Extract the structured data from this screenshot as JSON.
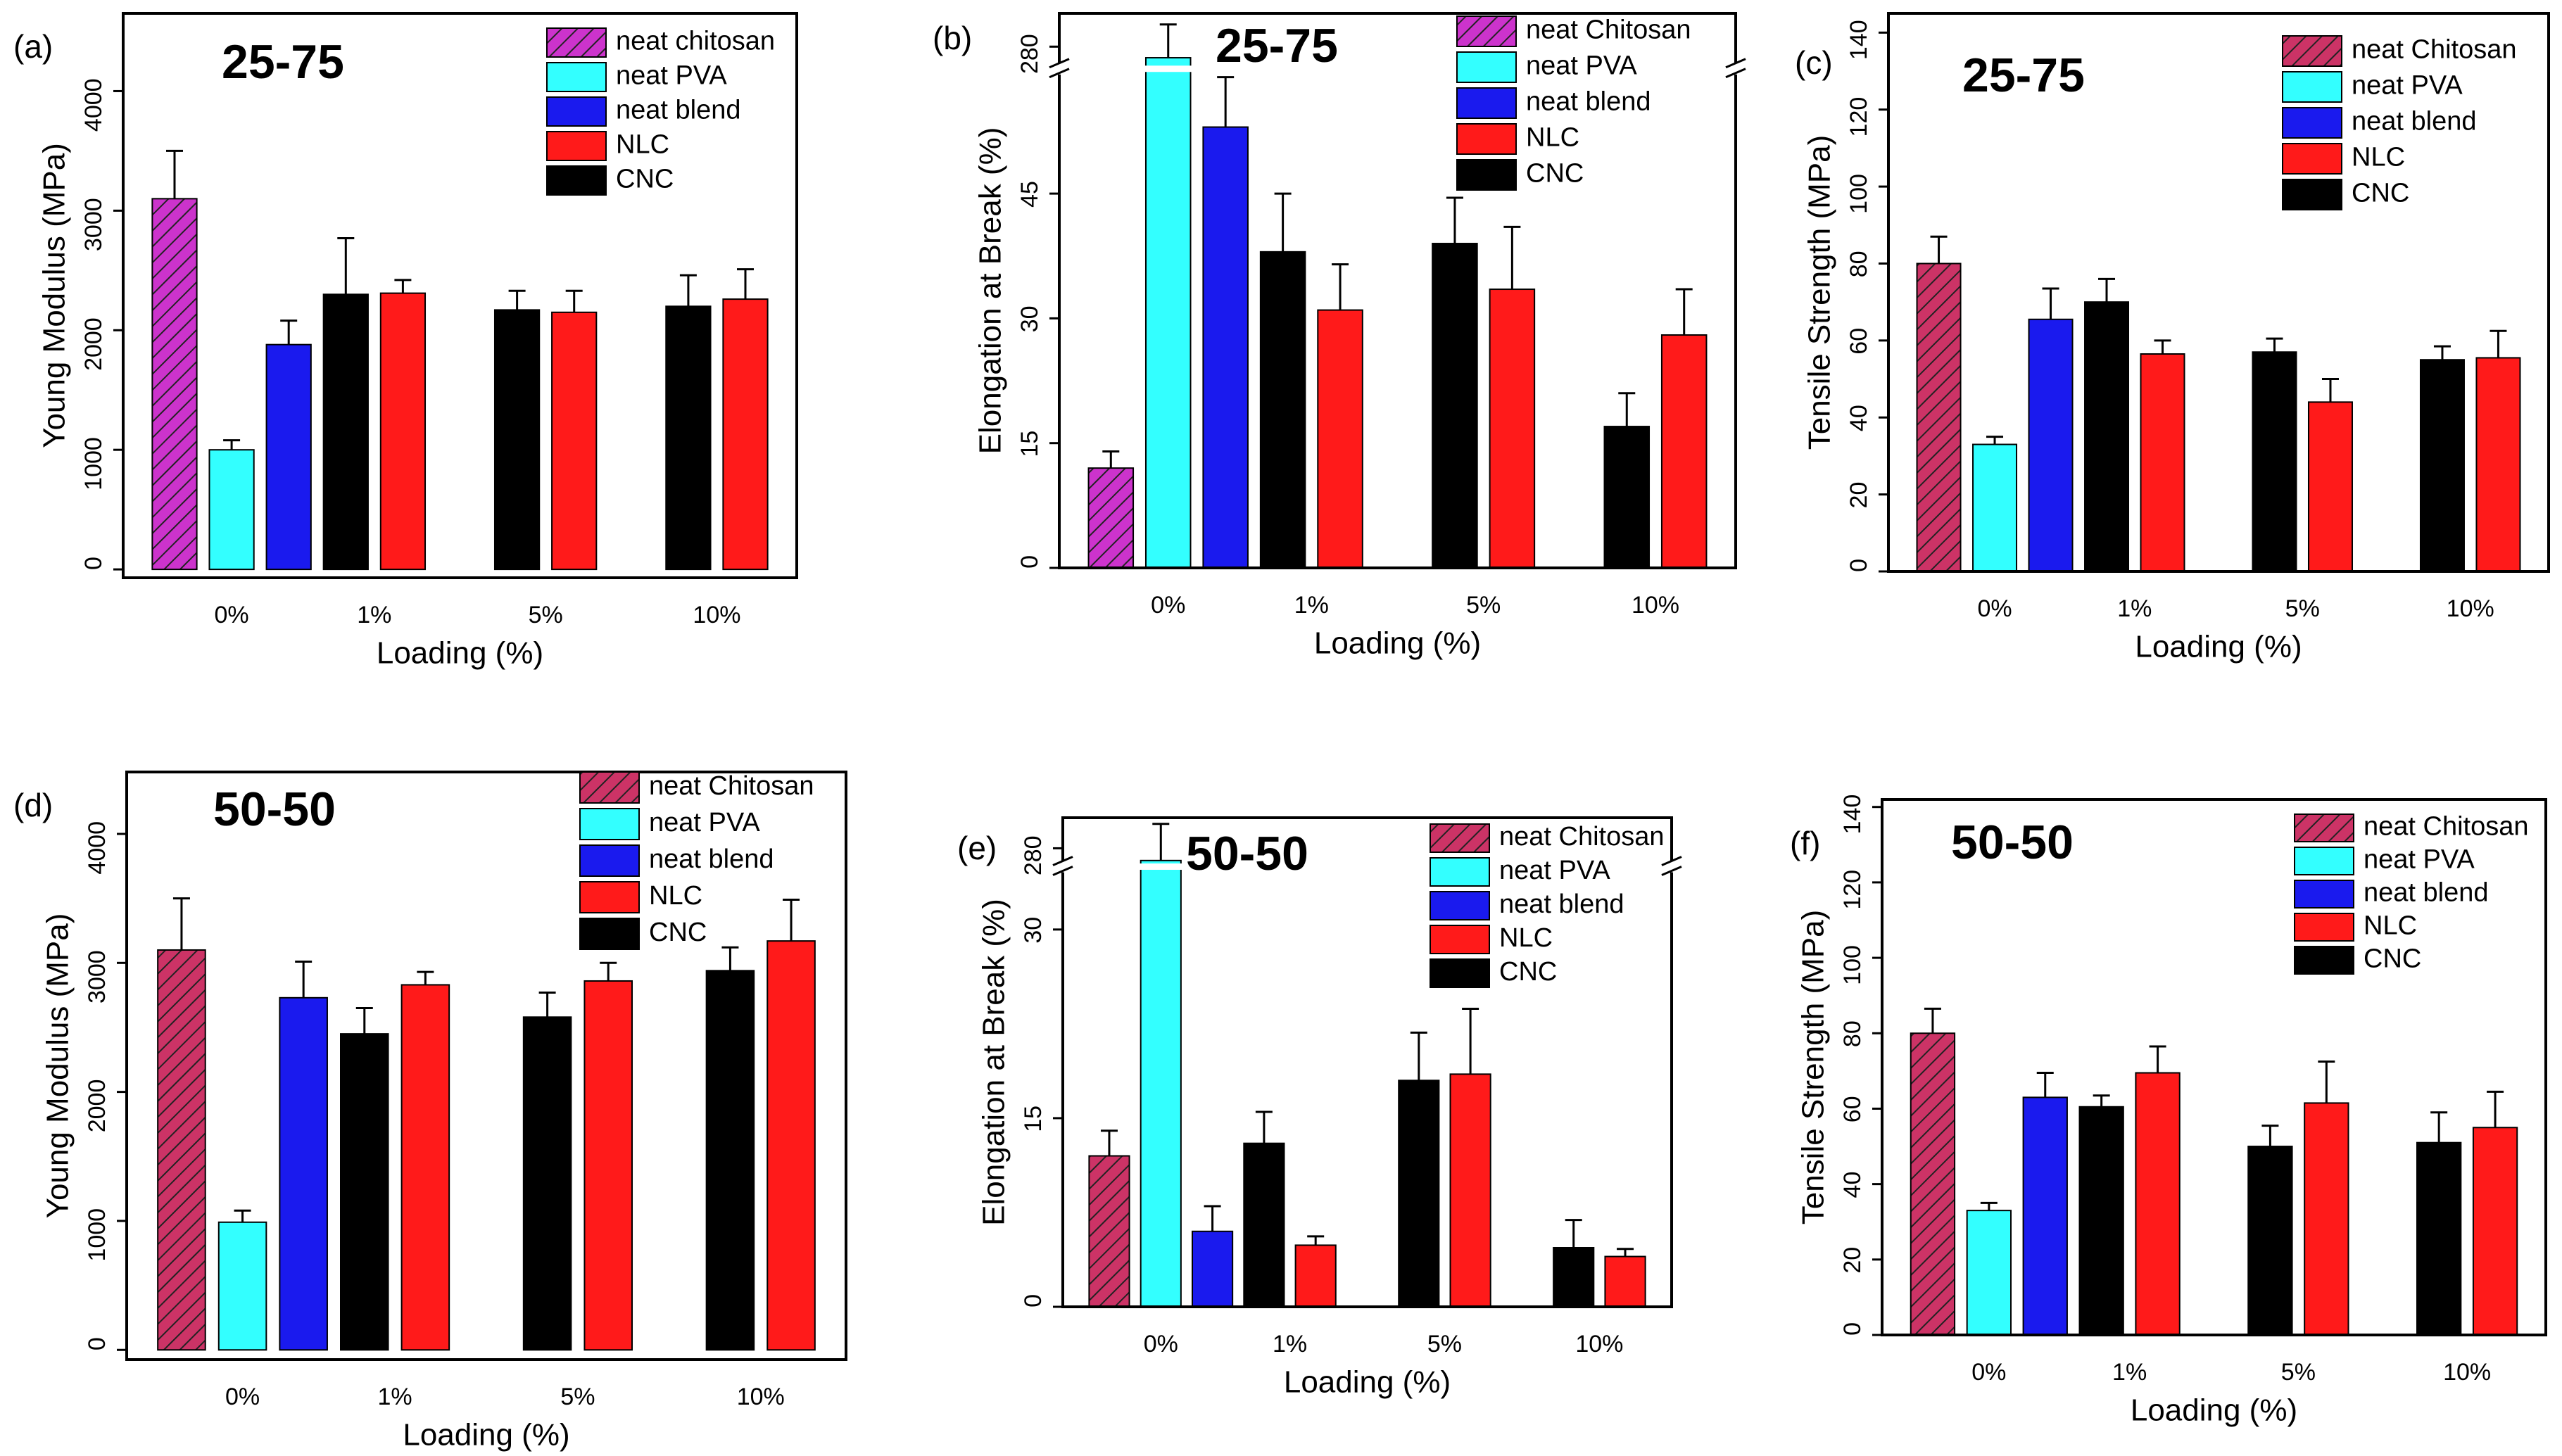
{
  "chart_data": [
    {
      "type": "bar",
      "panel_label": "(a)",
      "title": "25-75",
      "x_label": "Loading (%)",
      "y_label": "Young Modulus (MPa)",
      "categories": [
        "0%",
        "1%",
        "5%",
        "10%"
      ],
      "ylim": [
        -70,
        4650
      ],
      "yticks": [
        0,
        1000,
        2000,
        3000,
        4000
      ],
      "series": [
        {
          "name": "neat chitosan",
          "color": "#cc33cc",
          "text_color": "#e6007e",
          "pattern": "hatch",
          "values": [
            3100,
            null,
            null,
            null
          ],
          "errors": [
            400,
            null,
            null,
            null
          ]
        },
        {
          "name": "neat PVA",
          "color": "#33ffff",
          "text_color": "#00c8e6",
          "values": [
            1000,
            null,
            null,
            null
          ],
          "errors": [
            80,
            null,
            null,
            null
          ]
        },
        {
          "name": "neat blend",
          "color": "#1a1aee",
          "text_color": "#1a1aee",
          "values": [
            1880,
            null,
            null,
            null
          ],
          "errors": [
            200,
            null,
            null,
            null
          ]
        },
        {
          "name": "NLC",
          "color": "#ff1a1a",
          "text_color": "#ff1a1a",
          "values": [
            null,
            2310,
            2150,
            2260
          ],
          "errors": [
            null,
            110,
            180,
            250
          ]
        },
        {
          "name": "CNC",
          "color": "#000000",
          "text_color": "#000000",
          "values": [
            null,
            2300,
            2170,
            2200
          ],
          "errors": [
            null,
            470,
            160,
            260
          ]
        }
      ]
    },
    {
      "type": "bar",
      "panel_label": "(b)",
      "title": "25-75",
      "x_label": "Loading (%)",
      "y_label": "Elongation at Break (%)",
      "categories": [
        "0%",
        "1%",
        "5%",
        "10%"
      ],
      "ylim": [
        0,
        286
      ],
      "ybreak": [
        60,
        276
      ],
      "yticks": [
        0,
        15,
        30,
        45,
        280
      ],
      "series": [
        {
          "name": "neat Chitosan",
          "color": "#cc33cc",
          "text_color": "#e6007e",
          "pattern": "hatch",
          "values": [
            12,
            null,
            null,
            null
          ],
          "errors": [
            2,
            null,
            null,
            null
          ]
        },
        {
          "name": "neat PVA",
          "color": "#33ffff",
          "text_color": "#00c8e6",
          "values": [
            278,
            null,
            null,
            null
          ],
          "errors": [
            6,
            null,
            null,
            null
          ]
        },
        {
          "name": "neat blend",
          "color": "#1a1aee",
          "text_color": "#1a1aee",
          "values": [
            53,
            null,
            null,
            null
          ],
          "errors": [
            6,
            null,
            null,
            null
          ]
        },
        {
          "name": "NLC",
          "color": "#ff1a1a",
          "text_color": "#ff1a1a",
          "values": [
            null,
            31,
            33.5,
            28
          ],
          "errors": [
            null,
            5.5,
            7.5,
            5.5
          ]
        },
        {
          "name": "CNC",
          "color": "#000000",
          "text_color": "#000000",
          "values": [
            null,
            38,
            39,
            17
          ],
          "errors": [
            null,
            7,
            5.5,
            4
          ]
        }
      ]
    },
    {
      "type": "bar",
      "panel_label": "(c)",
      "title": "25-75",
      "x_label": "Loading (%)",
      "y_label": "Tensile Strength (MPa)",
      "categories": [
        "0%",
        "1%",
        "5%",
        "10%"
      ],
      "ylim": [
        0,
        145
      ],
      "yticks": [
        0,
        20,
        40,
        60,
        80,
        100,
        120,
        140
      ],
      "series": [
        {
          "name": "neat Chitosan",
          "color": "#cc3366",
          "text_color": "#e6007e",
          "pattern": "hatch",
          "values": [
            80,
            null,
            null,
            null
          ],
          "errors": [
            7,
            null,
            null,
            null
          ]
        },
        {
          "name": "neat PVA",
          "color": "#33ffff",
          "text_color": "#00c8e6",
          "values": [
            33,
            null,
            null,
            null
          ],
          "errors": [
            2,
            null,
            null,
            null
          ]
        },
        {
          "name": "neat blend",
          "color": "#1a1aee",
          "text_color": "#1a1aee",
          "values": [
            65.5,
            null,
            null,
            null
          ],
          "errors": [
            8,
            null,
            null,
            null
          ]
        },
        {
          "name": "NLC",
          "color": "#ff1a1a",
          "text_color": "#ff1a1a",
          "values": [
            null,
            56.5,
            44,
            55.5
          ],
          "errors": [
            null,
            3.5,
            6,
            7
          ]
        },
        {
          "name": "CNC",
          "color": "#000000",
          "text_color": "#000000",
          "values": [
            null,
            70,
            57,
            55
          ],
          "errors": [
            null,
            6,
            3.5,
            3.5
          ]
        }
      ]
    },
    {
      "type": "bar",
      "panel_label": "(d)",
      "title": "50-50",
      "x_label": "Loading (%)",
      "y_label": "Young Modulus (MPa)",
      "categories": [
        "0%",
        "1%",
        "5%",
        "10%"
      ],
      "ylim": [
        -75,
        4480
      ],
      "yticks": [
        0,
        1000,
        2000,
        3000,
        4000
      ],
      "series": [
        {
          "name": "neat Chitosan",
          "color": "#cc3366",
          "text_color": "#e6007e",
          "pattern": "hatch",
          "values": [
            3100,
            null,
            null,
            null
          ],
          "errors": [
            400,
            null,
            null,
            null
          ]
        },
        {
          "name": "neat PVA",
          "color": "#33ffff",
          "text_color": "#00c8e6",
          "values": [
            990,
            null,
            null,
            null
          ],
          "errors": [
            90,
            null,
            null,
            null
          ]
        },
        {
          "name": "neat blend",
          "color": "#1a1aee",
          "text_color": "#1a1aee",
          "values": [
            2730,
            null,
            null,
            null
          ],
          "errors": [
            280,
            null,
            null,
            null
          ]
        },
        {
          "name": "NLC",
          "color": "#ff1a1a",
          "text_color": "#ff1a1a",
          "values": [
            null,
            2830,
            2860,
            3170
          ],
          "errors": [
            null,
            100,
            140,
            320
          ]
        },
        {
          "name": "CNC",
          "color": "#000000",
          "text_color": "#000000",
          "values": [
            null,
            2450,
            2580,
            2940
          ],
          "errors": [
            null,
            200,
            190,
            180
          ]
        }
      ]
    },
    {
      "type": "bar",
      "panel_label": "(e)",
      "title": "50-50",
      "x_label": "Loading (%)",
      "y_label": "Elongation at Break (%)",
      "categories": [
        "0%",
        "1%",
        "5%",
        "10%"
      ],
      "ylim": [
        0,
        285
      ],
      "ybreak": [
        35,
        277
      ],
      "yticks": [
        0,
        15,
        30,
        280
      ],
      "series": [
        {
          "name": "neat Chitosan",
          "color": "#cc3366",
          "text_color": "#e6007e",
          "pattern": "hatch",
          "values": [
            12,
            null,
            null,
            null
          ],
          "errors": [
            2,
            null,
            null,
            null
          ]
        },
        {
          "name": "neat PVA",
          "color": "#33ffff",
          "text_color": "#00c8e6",
          "values": [
            278,
            null,
            null,
            null
          ],
          "errors": [
            6,
            null,
            null,
            null
          ]
        },
        {
          "name": "neat blend",
          "color": "#1a1aee",
          "text_color": "#1a1aee",
          "values": [
            6,
            null,
            null,
            null
          ],
          "errors": [
            2,
            null,
            null,
            null
          ]
        },
        {
          "name": "NLC",
          "color": "#ff1a1a",
          "text_color": "#ff1a1a",
          "values": [
            null,
            4.9,
            18.5,
            4
          ],
          "errors": [
            null,
            0.7,
            5.2,
            0.6
          ]
        },
        {
          "name": "CNC",
          "color": "#000000",
          "text_color": "#000000",
          "values": [
            null,
            13,
            18,
            4.7
          ],
          "errors": [
            null,
            2.5,
            3.8,
            2.2
          ]
        }
      ]
    },
    {
      "type": "bar",
      "panel_label": "(f)",
      "title": "50-50",
      "x_label": "Loading (%)",
      "y_label": "Tensile Strength (MPa)",
      "categories": [
        "0%",
        "1%",
        "5%",
        "10%"
      ],
      "ylim": [
        0,
        142
      ],
      "yticks": [
        0,
        20,
        40,
        60,
        80,
        100,
        120,
        140
      ],
      "series": [
        {
          "name": "neat Chitosan",
          "color": "#cc3366",
          "text_color": "#e6007e",
          "pattern": "hatch",
          "values": [
            80,
            null,
            null,
            null
          ],
          "errors": [
            6.5,
            null,
            null,
            null
          ]
        },
        {
          "name": "neat PVA",
          "color": "#33ffff",
          "text_color": "#00c8e6",
          "values": [
            33,
            null,
            null,
            null
          ],
          "errors": [
            2,
            null,
            null,
            null
          ]
        },
        {
          "name": "neat blend",
          "color": "#1a1aee",
          "text_color": "#1a1aee",
          "values": [
            63,
            null,
            null,
            null
          ],
          "errors": [
            6.5,
            null,
            null,
            null
          ]
        },
        {
          "name": "NLC",
          "color": "#ff1a1a",
          "text_color": "#ff1a1a",
          "values": [
            null,
            69.5,
            61.5,
            55
          ],
          "errors": [
            null,
            7,
            11,
            9.5
          ]
        },
        {
          "name": "CNC",
          "color": "#000000",
          "text_color": "#000000",
          "values": [
            null,
            60.5,
            50,
            51
          ],
          "errors": [
            null,
            3,
            5.5,
            8
          ]
        }
      ]
    }
  ]
}
